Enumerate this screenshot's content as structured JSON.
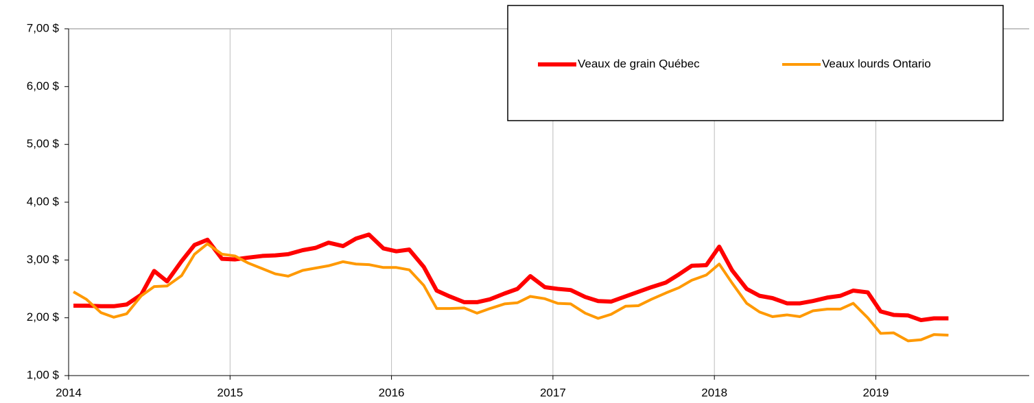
{
  "chart_data": {
    "type": "line",
    "x": [
      2014.03,
      2014.11,
      2014.2,
      2014.28,
      2014.36,
      2014.45,
      2014.53,
      2014.61,
      2014.7,
      2014.78,
      2014.86,
      2014.95,
      2015.03,
      2015.11,
      2015.2,
      2015.28,
      2015.36,
      2015.45,
      2015.53,
      2015.61,
      2015.7,
      2015.78,
      2015.86,
      2015.95,
      2016.03,
      2016.11,
      2016.2,
      2016.28,
      2016.36,
      2016.45,
      2016.53,
      2016.61,
      2016.7,
      2016.78,
      2016.86,
      2016.95,
      2017.03,
      2017.11,
      2017.2,
      2017.28,
      2017.36,
      2017.45,
      2017.53,
      2017.61,
      2017.7,
      2017.78,
      2017.86,
      2017.95,
      2018.03,
      2018.11,
      2018.2,
      2018.28,
      2018.36,
      2018.45,
      2018.53,
      2018.61,
      2018.7,
      2018.78,
      2018.86,
      2018.95,
      2019.03,
      2019.11,
      2019.2,
      2019.28,
      2019.36,
      2019.45
    ],
    "series": [
      {
        "name": "Veaux de grain Québec",
        "color": "#ff0000",
        "values": [
          2.21,
          2.21,
          2.2,
          2.2,
          2.23,
          2.4,
          2.81,
          2.63,
          2.98,
          3.26,
          3.35,
          3.02,
          3.01,
          3.04,
          3.07,
          3.08,
          3.1,
          3.17,
          3.21,
          3.3,
          3.24,
          3.37,
          3.44,
          3.2,
          3.15,
          3.18,
          2.88,
          2.47,
          2.37,
          2.27,
          2.27,
          2.32,
          2.42,
          2.5,
          2.72,
          2.53,
          2.5,
          2.48,
          2.36,
          2.29,
          2.28,
          2.37,
          2.45,
          2.53,
          2.61,
          2.75,
          2.9,
          2.91,
          3.23,
          2.82,
          2.5,
          2.38,
          2.34,
          2.25,
          2.25,
          2.29,
          2.35,
          2.38,
          2.47,
          2.44,
          2.11,
          2.05,
          2.04,
          1.96,
          1.99,
          1.99
        ]
      },
      {
        "name": "Veaux lourds Ontario",
        "color": "#ff9900",
        "values": [
          2.45,
          2.32,
          2.09,
          2.01,
          2.07,
          2.38,
          2.54,
          2.55,
          2.73,
          3.1,
          3.28,
          3.1,
          3.07,
          2.95,
          2.85,
          2.76,
          2.72,
          2.82,
          2.86,
          2.9,
          2.97,
          2.93,
          2.92,
          2.87,
          2.87,
          2.83,
          2.56,
          2.16,
          2.16,
          2.17,
          2.08,
          2.16,
          2.24,
          2.26,
          2.37,
          2.33,
          2.25,
          2.24,
          2.08,
          1.99,
          2.06,
          2.2,
          2.21,
          2.32,
          2.43,
          2.52,
          2.65,
          2.74,
          2.93,
          2.6,
          2.25,
          2.1,
          2.02,
          2.05,
          2.02,
          2.12,
          2.15,
          2.15,
          2.25,
          2.0,
          1.73,
          1.74,
          1.6,
          1.62,
          1.71,
          1.7
        ]
      }
    ],
    "xlim": [
      2014,
      2019.95
    ],
    "xticks": [
      2014,
      2015,
      2016,
      2017,
      2018,
      2019
    ],
    "ylim": [
      1,
      7
    ],
    "yticks": [
      {
        "value": 1,
        "label": "1,00 $"
      },
      {
        "value": 2,
        "label": "2,00 $"
      },
      {
        "value": 3,
        "label": "3,00 $"
      },
      {
        "value": 4,
        "label": "4,00 $"
      },
      {
        "value": 5,
        "label": "5,00 $"
      },
      {
        "value": 6,
        "label": "6,00 $"
      },
      {
        "value": 7,
        "label": "7,00 $"
      }
    ],
    "grid": "x",
    "legend": "top-right"
  }
}
